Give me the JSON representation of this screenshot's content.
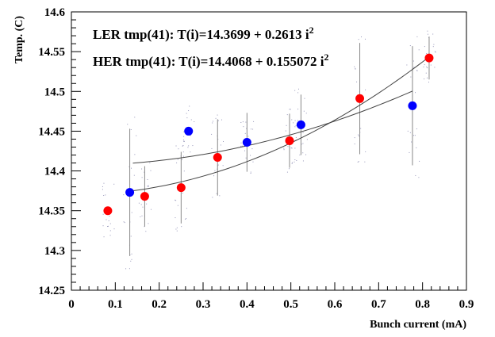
{
  "chart_data": {
    "type": "scatter",
    "xlabel": "Bunch current (mA)",
    "ylabel": "Temp. (C)",
    "xlim": [
      0,
      0.9
    ],
    "ylim": [
      14.25,
      14.6
    ],
    "x_ticks": [
      "0",
      "0.1",
      "0.2",
      "0.3",
      "0.4",
      "0.5",
      "0.6",
      "0.7",
      "0.8",
      "0.9"
    ],
    "y_ticks": [
      "14.25",
      "14.3",
      "14.35",
      "14.4",
      "14.45",
      "14.5",
      "14.55",
      "14.6"
    ],
    "grid": false,
    "annotations": [
      {
        "text": "LER tmp(41): T(i)=14.3699 + 0.2613 i",
        "superscript": "2",
        "color": "#e00000"
      },
      {
        "text": "HER tmp(41): T(i)=14.4068 + 0.155072 i",
        "superscript": "2",
        "color": "#0000e0"
      }
    ],
    "series": [
      {
        "color": "#ff0000",
        "points": [
          {
            "x": 0.083,
            "y": 14.35,
            "err": 0.0
          },
          {
            "x": 0.167,
            "y": 14.368,
            "err": 0.038
          },
          {
            "x": 0.25,
            "y": 14.379,
            "err": 0.045
          },
          {
            "x": 0.333,
            "y": 14.417,
            "err": 0.048
          },
          {
            "x": 0.497,
            "y": 14.438,
            "err": 0.034
          },
          {
            "x": 0.657,
            "y": 14.491,
            "err": 0.07
          },
          {
            "x": 0.815,
            "y": 14.542,
            "err": 0.027
          }
        ],
        "fit": {
          "a": 14.3699,
          "b": 0.2613,
          "x_range": [
            0.14,
            0.815
          ]
        }
      },
      {
        "color": "#0000ff",
        "points": [
          {
            "x": 0.133,
            "y": 14.373,
            "err": 0.08
          },
          {
            "x": 0.267,
            "y": 14.45,
            "err": 0.0
          },
          {
            "x": 0.4,
            "y": 14.436,
            "err": 0.037
          },
          {
            "x": 0.523,
            "y": 14.458,
            "err": 0.038
          },
          {
            "x": 0.777,
            "y": 14.482,
            "err": 0.075
          }
        ],
        "fit": {
          "a": 14.4068,
          "b": 0.155072,
          "x_range": [
            0.14,
            0.777
          ]
        }
      }
    ]
  }
}
